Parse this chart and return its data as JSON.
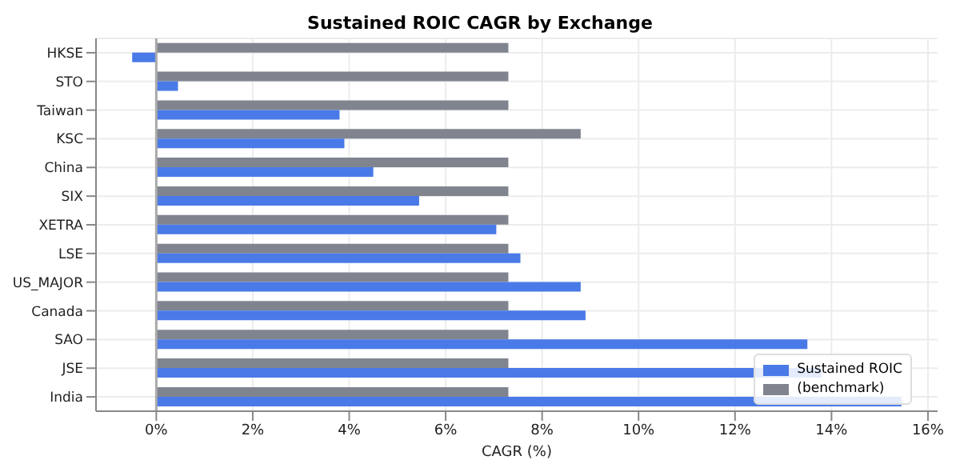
{
  "chart_data": {
    "type": "bar",
    "orientation": "horizontal",
    "title": "Sustained ROIC CAGR by Exchange",
    "xlabel": "CAGR (%)",
    "categories": [
      "HKSE",
      "STO",
      "Taiwan",
      "KSC",
      "China",
      "SIX",
      "XETRA",
      "LSE",
      "US_MAJOR",
      "Canada",
      "SAO",
      "JSE",
      "India"
    ],
    "series": [
      {
        "name": "Sustained ROIC",
        "color": "#4a7ae8",
        "values": [
          -0.5,
          0.45,
          3.8,
          3.9,
          4.5,
          5.45,
          7.05,
          7.55,
          8.8,
          8.9,
          13.5,
          13.8,
          15.45
        ]
      },
      {
        "name": "(benchmark)",
        "color": "#80848f",
        "values": [
          7.3,
          7.3,
          7.3,
          8.8,
          7.3,
          7.3,
          7.3,
          7.3,
          7.3,
          7.3,
          7.3,
          7.3,
          7.3
        ]
      }
    ],
    "xlim": [
      -1.25,
      16.2
    ],
    "xticks": [
      {
        "value": 0,
        "label": "0%"
      },
      {
        "value": 2,
        "label": "2%"
      },
      {
        "value": 4,
        "label": "4%"
      },
      {
        "value": 6,
        "label": "6%"
      },
      {
        "value": 8,
        "label": "8%"
      },
      {
        "value": 10,
        "label": "10%"
      },
      {
        "value": 12,
        "label": "12%"
      },
      {
        "value": 14,
        "label": "14%"
      },
      {
        "value": 16,
        "label": "16%"
      }
    ],
    "grid": true,
    "legend": "bottom right"
  }
}
